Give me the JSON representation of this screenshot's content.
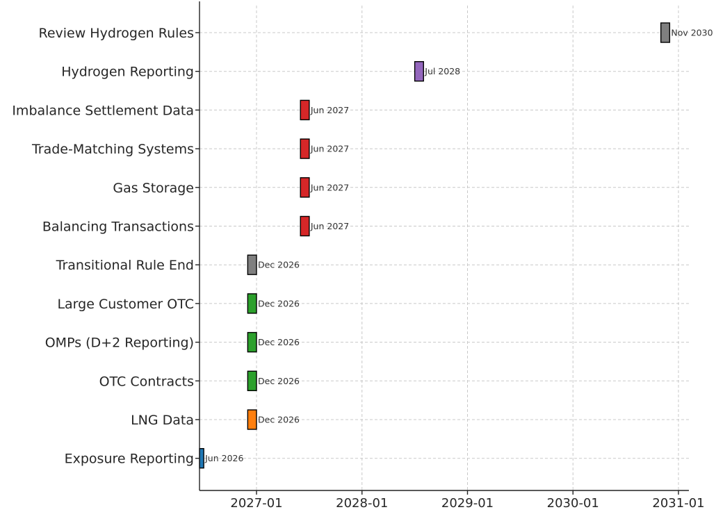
{
  "chart_data": {
    "type": "gantt-timeline",
    "title": "",
    "xlabel": "",
    "ylabel": "",
    "x_axis": {
      "type": "date",
      "ticks": [
        "2027-01",
        "2028-01",
        "2029-01",
        "2030-01",
        "2031-01"
      ],
      "range": [
        "2026-06",
        "2031-01"
      ]
    },
    "grid": true,
    "legend": "none",
    "bar_duration_months": 1,
    "tasks": [
      {
        "label": "Exposure Reporting",
        "date": "2026-06",
        "date_label": "Jun 2026",
        "color": "#1f77b4"
      },
      {
        "label": "LNG Data",
        "date": "2026-12",
        "date_label": "Dec 2026",
        "color": "#ff7f0e"
      },
      {
        "label": "OTC Contracts",
        "date": "2026-12",
        "date_label": "Dec 2026",
        "color": "#2ca02c"
      },
      {
        "label": "OMPs (D+2 Reporting)",
        "date": "2026-12",
        "date_label": "Dec 2026",
        "color": "#2ca02c"
      },
      {
        "label": "Large Customer OTC",
        "date": "2026-12",
        "date_label": "Dec 2026",
        "color": "#2ca02c"
      },
      {
        "label": "Transitional Rule End",
        "date": "2026-12",
        "date_label": "Dec 2026",
        "color": "#7f7f7f"
      },
      {
        "label": "Balancing Transactions",
        "date": "2027-06",
        "date_label": "Jun 2027",
        "color": "#d62728"
      },
      {
        "label": "Gas Storage",
        "date": "2027-06",
        "date_label": "Jun 2027",
        "color": "#d62728"
      },
      {
        "label": "Trade-Matching Systems",
        "date": "2027-06",
        "date_label": "Jun 2027",
        "color": "#d62728"
      },
      {
        "label": "Imbalance Settlement Data",
        "date": "2027-06",
        "date_label": "Jun 2027",
        "color": "#d62728"
      },
      {
        "label": "Hydrogen Reporting",
        "date": "2028-07",
        "date_label": "Jul 2028",
        "color": "#9467bd"
      },
      {
        "label": "Review Hydrogen Rules",
        "date": "2030-11",
        "date_label": "Nov 2030",
        "color": "#7f7f7f"
      }
    ]
  }
}
